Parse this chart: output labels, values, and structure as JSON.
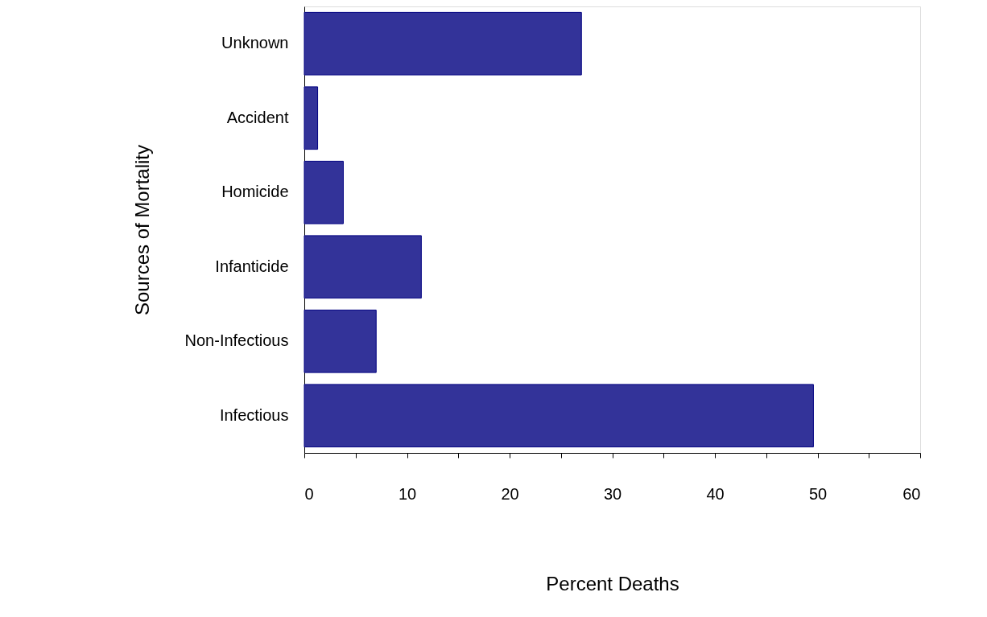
{
  "chart_data": {
    "type": "bar",
    "orientation": "horizontal",
    "xlabel": "Percent Deaths",
    "ylabel": "Sources of Mortality",
    "categories": [
      "Unknown",
      "Accident",
      "Homicide",
      "Infanticide",
      "Non-Infectious",
      "Infectious"
    ],
    "values": [
      27.0,
      1.3,
      3.8,
      11.4,
      7.0,
      49.6
    ],
    "color": "#333399",
    "xlim": [
      0,
      60
    ],
    "xticks": [
      0,
      {
        "value": 5,
        "label": null
      },
      10,
      {
        "value": 15,
        "label": null
      },
      20,
      {
        "value": 25,
        "label": null
      },
      30,
      {
        "value": 35,
        "label": null
      },
      40,
      {
        "value": 45,
        "label": null
      },
      50,
      {
        "value": 55,
        "label": null
      },
      60
    ],
    "grid": false
  }
}
